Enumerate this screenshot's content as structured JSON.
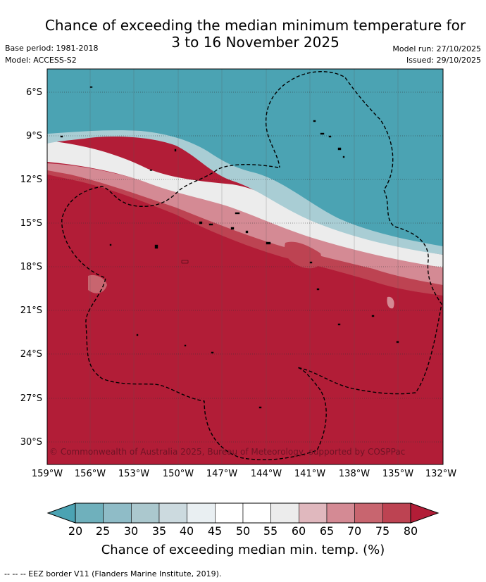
{
  "title": {
    "line1": "Chance of exceeding the median minimum temperature for",
    "line2": "3 to 16 November 2025"
  },
  "meta": {
    "base_period": "Base period: 1981-2018",
    "model": "Model: ACCESS-S2",
    "model_run": "Model run: 27/10/2025",
    "issued": "Issued: 29/10/2025"
  },
  "map": {
    "lat_labels": [
      "6°S",
      "9°S",
      "12°S",
      "15°S",
      "18°S",
      "21°S",
      "24°S",
      "27°S",
      "30°S"
    ],
    "lon_labels": [
      "159°W",
      "156°W",
      "153°W",
      "150°W",
      "147°W",
      "144°W",
      "141°W",
      "138°W",
      "135°W",
      "132°W"
    ],
    "copyright": "© Commonwealth of Australia 2025, Bureau of Meteorology, supported by COSPPac",
    "colors": {
      "low": "#4ba3b3",
      "high": "#b21d37",
      "mid": "#ffffff"
    }
  },
  "colorbar": {
    "ticks": [
      "20",
      "25",
      "30",
      "35",
      "40",
      "45",
      "50",
      "55",
      "60",
      "65",
      "70",
      "75",
      "80"
    ],
    "colors": [
      "#6fb0bc",
      "#8fbcc7",
      "#abc8ce",
      "#ccdadf",
      "#e9eff2",
      "#ffffff",
      "#ffffff",
      "#ececec",
      "#e0b8be",
      "#d48a94",
      "#c8656f",
      "#bd4352"
    ],
    "label": "Chance of exceeding median min. temp. (%)"
  },
  "footer": "--  --  -- EEZ border V11 (Flanders Marine Institute, 2019)."
}
